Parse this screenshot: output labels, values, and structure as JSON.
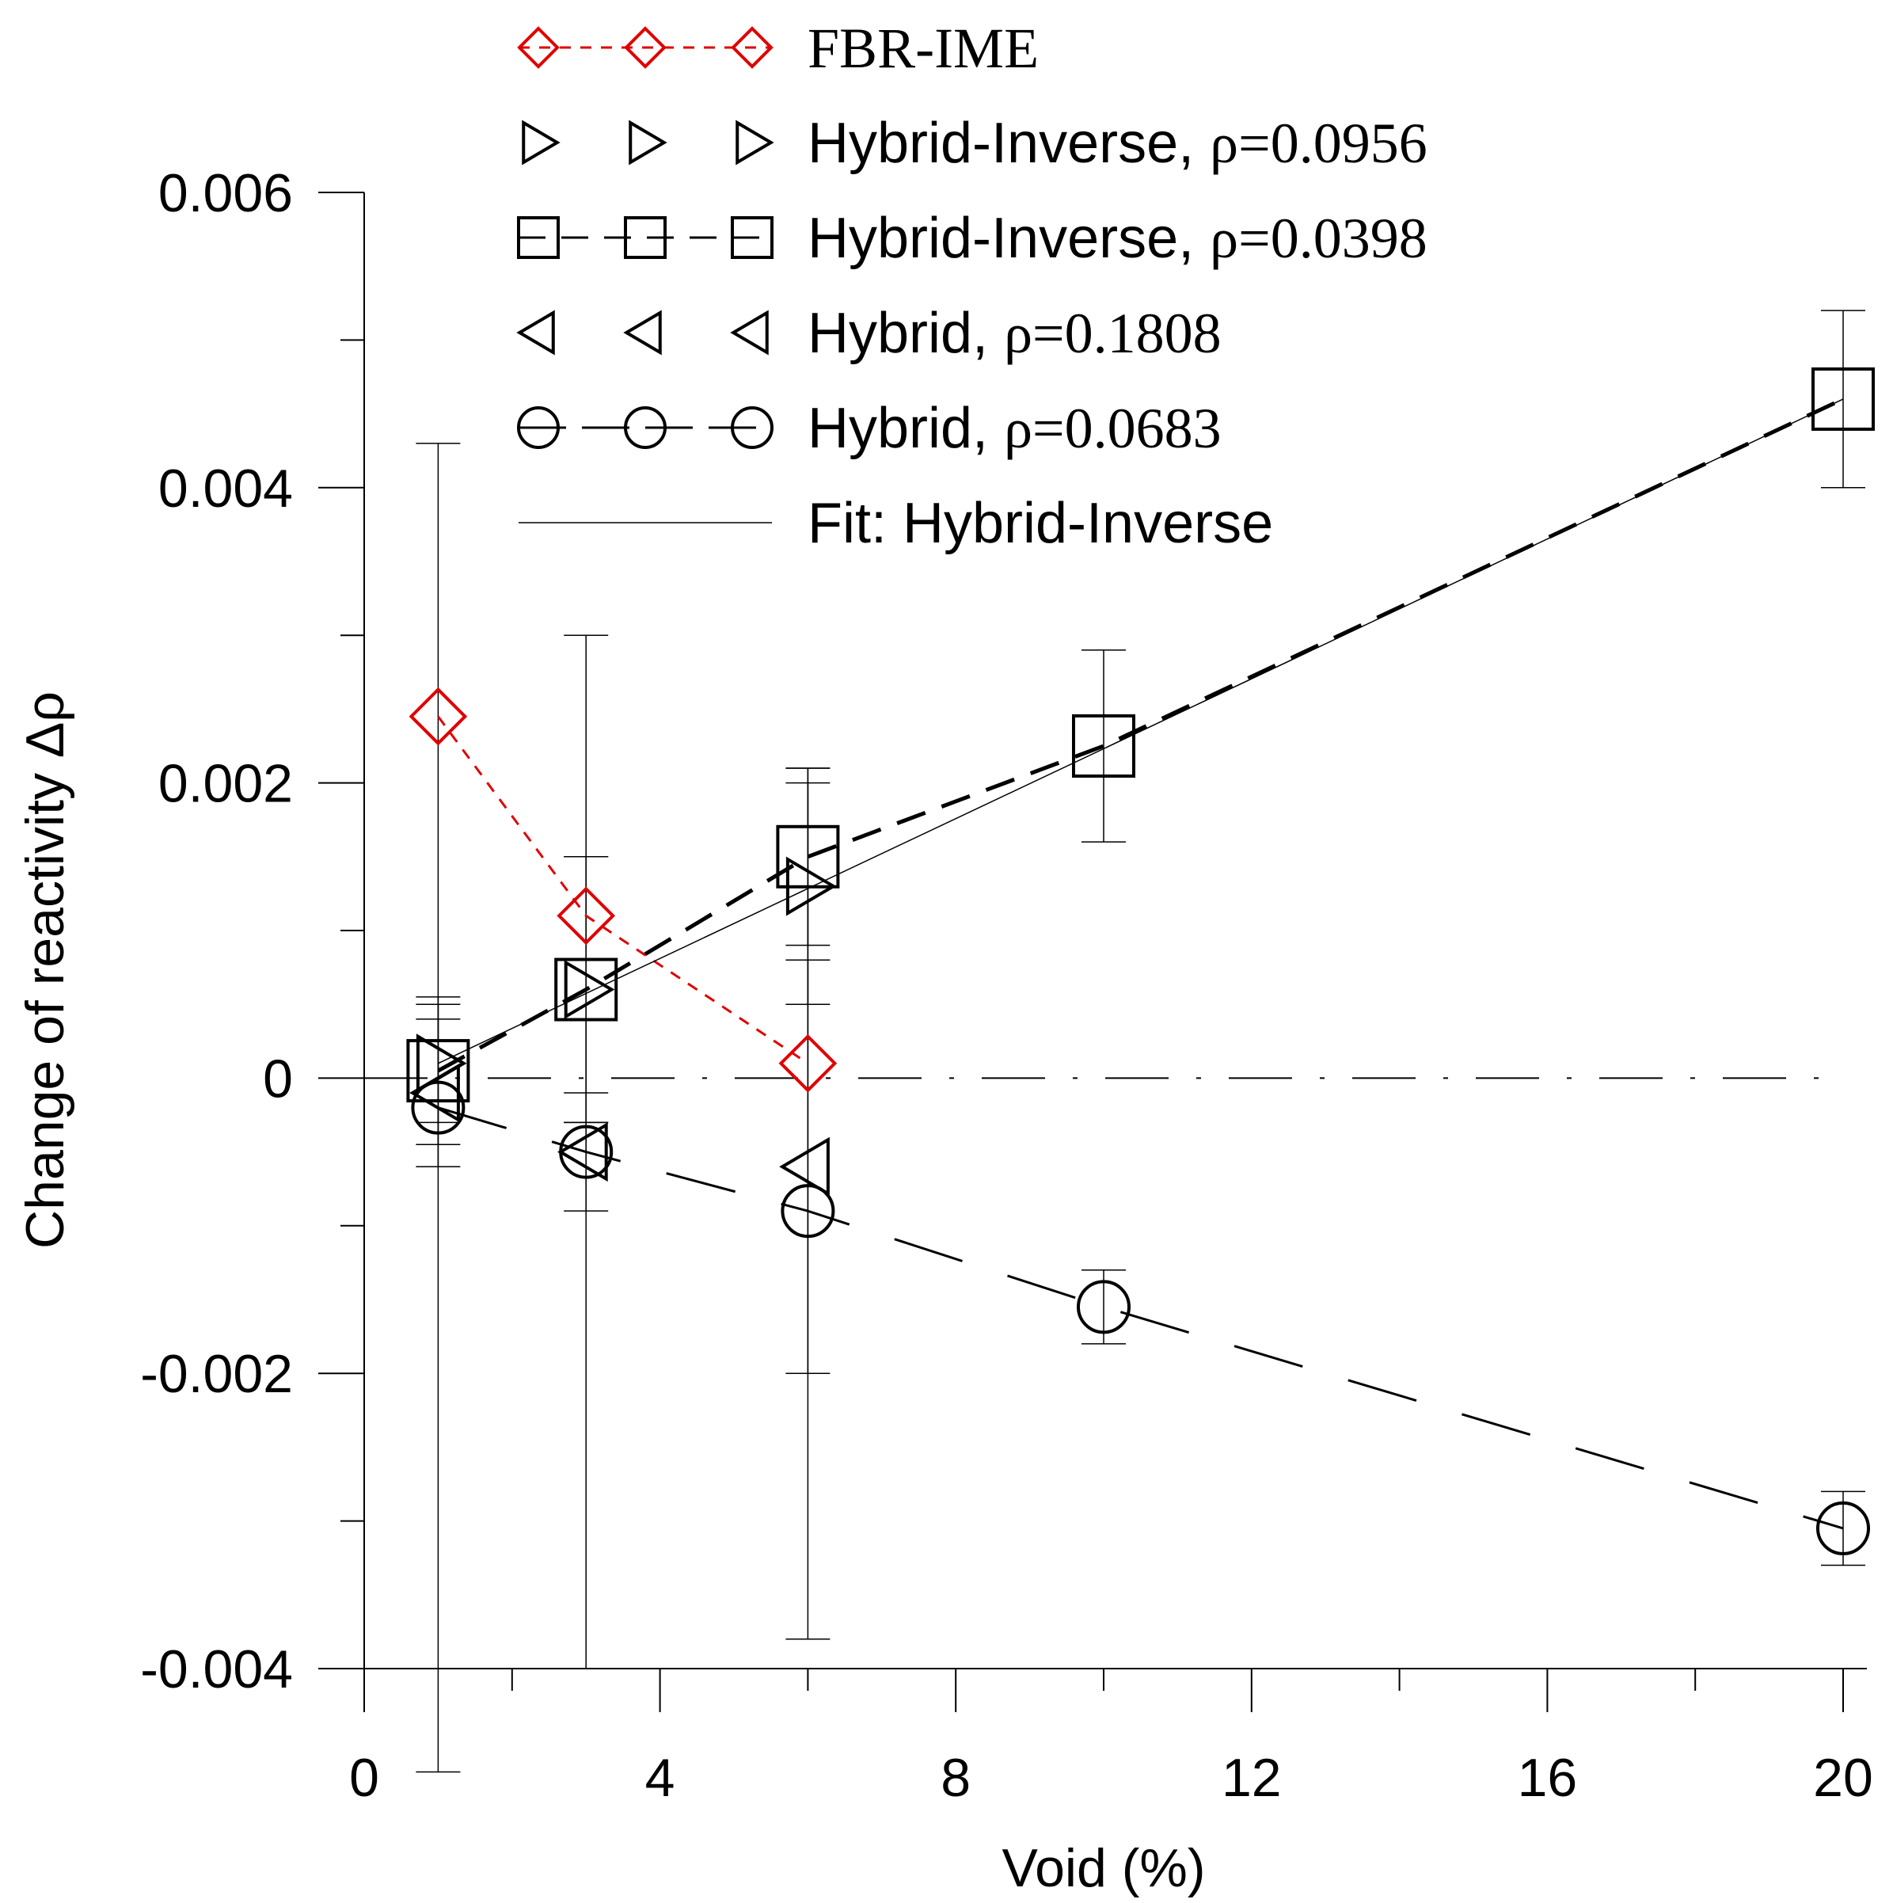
{
  "chart_data": {
    "type": "scatter",
    "title": "",
    "xlabel": "Void (%)",
    "ylabel": "Change of reactivity Δρ",
    "xlim": [
      0,
      20
    ],
    "ylim": [
      -0.004,
      0.006
    ],
    "x_ticks": [
      0,
      4,
      8,
      12,
      16,
      20
    ],
    "x_tick_labels": [
      "0",
      "4",
      "8",
      "12",
      "16",
      "20"
    ],
    "y_ticks": [
      -0.004,
      -0.002,
      0,
      0.002,
      0.004,
      0.006
    ],
    "y_tick_labels": [
      "-0.004",
      "-0.002",
      "0",
      "0.002",
      "0.004",
      "0.006"
    ],
    "zero_line": true,
    "grid": false,
    "legend_position": "top",
    "series": [
      {
        "name": "FBR-IME",
        "label_main": "FBR-IME",
        "label_rho": "",
        "marker": "diamond",
        "color": "#e00000",
        "line": "short-dash",
        "x": [
          1,
          3,
          6
        ],
        "y": [
          0.00245,
          0.0011,
          0.0001
        ],
        "err": [
          0,
          0,
          0
        ]
      },
      {
        "name": "Hybrid-Inverse, ρ=0.0956",
        "label_main": "Hybrid-Inverse, ",
        "label_rho": "ρ=0.0956",
        "marker": "triangle-right",
        "color": "#000000",
        "line": "none",
        "x": [
          1,
          3,
          6
        ],
        "y": [
          0.0001,
          0.0006,
          0.0013
        ],
        "err": [
          0.0004,
          0.0009,
          0.0008
        ]
      },
      {
        "name": "Hybrid-Inverse, ρ=0.0398",
        "label_main": "Hybrid-Inverse, ",
        "label_rho": "ρ=0.0398",
        "marker": "square",
        "color": "#000000",
        "line": "dash",
        "x": [
          1,
          3,
          6,
          10,
          20
        ],
        "y": [
          5e-05,
          0.0006,
          0.0015,
          0.00225,
          0.0046
        ],
        "err": [
          0.0005,
          0.0009,
          0.0006,
          0.00065,
          0.0006
        ]
      },
      {
        "name": "Hybrid, ρ=0.1808",
        "label_main": "Hybrid, ",
        "label_rho": "ρ=0.1808",
        "marker": "triangle-left",
        "color": "#000000",
        "line": "none",
        "x": [
          1,
          3,
          6
        ],
        "y": [
          -0.0001,
          -0.0005,
          -0.0006
        ],
        "err": [
          0.0005,
          0.0004,
          0.0014
        ]
      },
      {
        "name": "Hybrid, ρ=0.0683",
        "label_main": "Hybrid, ",
        "label_rho": "ρ=0.0683",
        "marker": "circle",
        "color": "#000000",
        "line": "long-dash",
        "x": [
          1,
          3,
          6,
          10,
          20
        ],
        "y": [
          -0.0002,
          -0.0005,
          -0.0009,
          -0.00155,
          -0.00305
        ],
        "err": [
          0.0045,
          0.0035,
          0.0029,
          0.00025,
          0.00025
        ]
      },
      {
        "name": "Fit: Hybrid-Inverse",
        "label_main": "Fit: Hybrid-Inverse",
        "label_rho": "",
        "marker": "none",
        "color": "#000000",
        "line": "thin-solid",
        "x": [
          1,
          20
        ],
        "y": [
          0.0001,
          0.0046
        ],
        "err": []
      }
    ]
  }
}
